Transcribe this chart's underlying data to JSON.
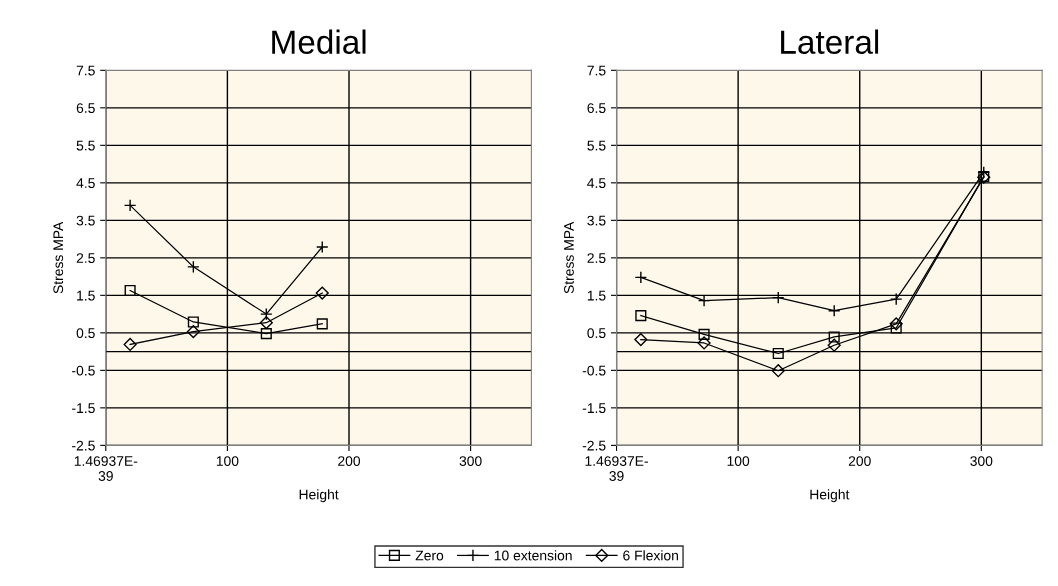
{
  "chart_data": [
    {
      "type": "line",
      "title": "Medial",
      "xlabel": "Height",
      "ylabel": "Stress MPA",
      "xlim": [
        0,
        350
      ],
      "xticks": [
        {
          "value": 0,
          "label": "1.46937E-\n39"
        },
        100,
        200,
        300
      ],
      "ylim": [
        -2.5,
        7.5
      ],
      "yticks": [
        -2.5,
        -1.5,
        -0.5,
        0.5,
        1.5,
        2.5,
        3.5,
        4.5,
        5.5,
        6.5,
        7.5
      ],
      "grid": true,
      "legend": "bottom",
      "ref_lines": [
        {
          "axis": "y",
          "value": 0,
          "color": "#000000"
        }
      ],
      "series": [
        {
          "name": "Zero",
          "color": "#000000",
          "marker": "square",
          "x": [
            20,
            72,
            132,
            178
          ],
          "values": [
            1.63,
            0.79,
            0.48,
            0.74
          ]
        },
        {
          "name": "10 extension",
          "color": "#000000",
          "marker": "cross",
          "x": [
            20,
            72,
            132,
            178
          ],
          "values": [
            3.9,
            2.26,
            1.0,
            2.79
          ]
        },
        {
          "name": "6 Flexion",
          "color": "#000000",
          "marker": "diamond",
          "x": [
            20,
            72,
            132,
            178
          ],
          "values": [
            0.19,
            0.53,
            0.77,
            1.56
          ]
        }
      ]
    },
    {
      "type": "line",
      "title": "Lateral",
      "xlabel": "Height",
      "ylabel": "Stress MPA",
      "xlim": [
        0,
        350
      ],
      "xticks": [
        {
          "value": 0,
          "label": "1.46937E-\n39"
        },
        100,
        200,
        300
      ],
      "ylim": [
        -2.5,
        7.5
      ],
      "yticks": [
        -2.5,
        -1.5,
        -0.5,
        0.5,
        1.5,
        2.5,
        3.5,
        4.5,
        5.5,
        6.5,
        7.5
      ],
      "grid": true,
      "legend": "bottom",
      "ref_lines": [
        {
          "axis": "y",
          "value": 0,
          "color": "#000000"
        }
      ],
      "series": [
        {
          "name": "Zero",
          "color": "#000000",
          "marker": "square",
          "x": [
            20,
            72,
            133,
            179,
            230,
            302
          ],
          "values": [
            0.96,
            0.46,
            -0.05,
            0.39,
            0.63,
            4.67
          ]
        },
        {
          "name": "10 extension",
          "color": "#000000",
          "marker": "cross",
          "x": [
            20,
            72,
            133,
            179,
            230,
            302
          ],
          "values": [
            1.98,
            1.36,
            1.44,
            1.09,
            1.4,
            4.78
          ]
        },
        {
          "name": "6 Flexion",
          "color": "#000000",
          "marker": "diamond",
          "x": [
            20,
            72,
            133,
            179,
            230,
            302
          ],
          "values": [
            0.32,
            0.23,
            -0.51,
            0.17,
            0.74,
            4.65
          ]
        }
      ]
    }
  ]
}
